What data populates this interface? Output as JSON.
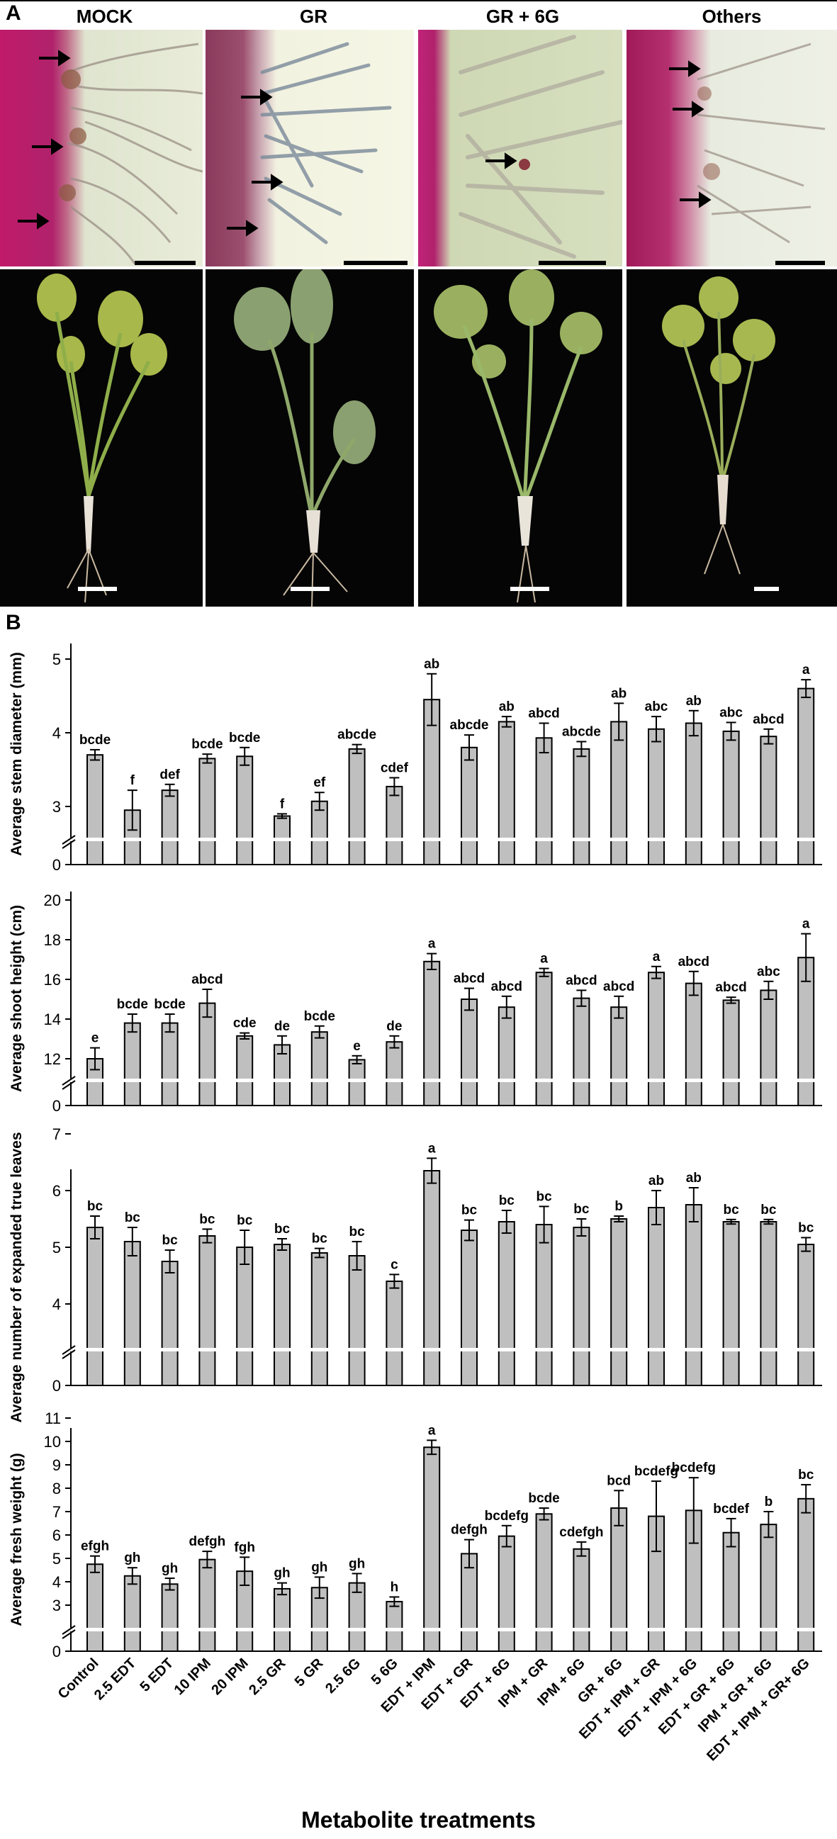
{
  "panel_a": {
    "letter": "A",
    "columns": [
      "MOCK",
      "GR",
      "GR + 6G",
      "Others"
    ]
  },
  "panel_b": {
    "letter": "B",
    "x_axis_title": "Metabolite treatments"
  },
  "colors": {
    "bar_fill": "#bfbfbf",
    "bar_stroke": "#000000",
    "stain_magenta": "#b0226b",
    "plant_green": "#7da040",
    "background_dark": "#050505"
  },
  "chart_data": [
    {
      "type": "bar",
      "ylabel": "Average stem diameter (mm)",
      "ylim": [
        0,
        5.5
      ],
      "axis_break": true,
      "yticks": [
        "0",
        "3",
        "4",
        "5"
      ],
      "categories": [
        "Control",
        "2.5 EDT",
        "5 EDT",
        "10 IPM",
        "20 IPM",
        "2.5 GR",
        "5 GR",
        "2.5 6G",
        "5 6G",
        "EDT + IPM",
        "EDT + GR",
        "EDT + 6G",
        "IPM + GR",
        "IPM + 6G",
        "GR + 6G",
        "EDT + IPM + GR",
        "EDT + IPM + 6G",
        "EDT + GR + 6G",
        "IPM + GR + 6G",
        "EDT + IPM + GR+ 6G"
      ],
      "values": [
        3.7,
        2.95,
        3.22,
        3.65,
        3.68,
        2.87,
        3.07,
        3.78,
        3.27,
        4.45,
        3.8,
        4.15,
        3.93,
        3.78,
        4.15,
        4.05,
        4.13,
        4.02,
        3.95,
        4.6
      ],
      "errors": [
        0.07,
        0.27,
        0.08,
        0.06,
        0.12,
        0.03,
        0.12,
        0.06,
        0.12,
        0.35,
        0.17,
        0.07,
        0.2,
        0.1,
        0.25,
        0.17,
        0.17,
        0.12,
        0.1,
        0.12
      ],
      "letters": [
        "bcde",
        "f",
        "def",
        "bcde",
        "bcde",
        "f",
        "ef",
        "abcde",
        "cdef",
        "ab",
        "abcde",
        "ab",
        "abcd",
        "abcde",
        "ab",
        "abc",
        "ab",
        "abc",
        "abcd",
        "a"
      ]
    },
    {
      "type": "bar",
      "ylabel": "Average shoot height (cm)",
      "ylim": [
        0,
        20
      ],
      "axis_break": true,
      "yticks": [
        "0",
        "12",
        "14",
        "16",
        "18",
        "20"
      ],
      "categories": [
        "Control",
        "2.5 EDT",
        "5 EDT",
        "10 IPM",
        "20 IPM",
        "2.5 GR",
        "5 GR",
        "2.5 6G",
        "5 6G",
        "EDT + IPM",
        "EDT + GR",
        "EDT + 6G",
        "IPM + GR",
        "IPM + 6G",
        "GR + 6G",
        "EDT + IPM + GR",
        "EDT + IPM + 6G",
        "EDT + GR + 6G",
        "IPM + GR + 6G",
        "EDT + IPM + GR+ 6G"
      ],
      "values": [
        12.0,
        13.8,
        13.8,
        14.8,
        13.15,
        12.7,
        13.35,
        11.95,
        12.85,
        16.9,
        15.0,
        14.6,
        16.35,
        15.05,
        14.6,
        16.35,
        15.8,
        14.95,
        15.45,
        17.1
      ],
      "errors": [
        0.55,
        0.45,
        0.45,
        0.7,
        0.15,
        0.45,
        0.3,
        0.2,
        0.3,
        0.4,
        0.55,
        0.55,
        0.2,
        0.4,
        0.55,
        0.3,
        0.6,
        0.15,
        0.45,
        1.2
      ],
      "letters": [
        "e",
        "bcde",
        "bcde",
        "abcd",
        "cde",
        "de",
        "bcde",
        "e",
        "de",
        "a",
        "abcd",
        "abcd",
        "a",
        "abcd",
        "abcd",
        "a",
        "abcd",
        "abcd",
        "abc",
        "a"
      ]
    },
    {
      "type": "bar",
      "ylabel": "Average number of expanded true leaves",
      "ylim": [
        0,
        7.5
      ],
      "axis_break": true,
      "yticks": [
        "0",
        "4",
        "5",
        "6",
        "7"
      ],
      "categories": [
        "Control",
        "2.5 EDT",
        "5 EDT",
        "10 IPM",
        "20 IPM",
        "2.5 GR",
        "5 GR",
        "2.5 6G",
        "5 6G",
        "EDT + IPM",
        "EDT + GR",
        "EDT + 6G",
        "IPM + GR",
        "IPM + 6G",
        "GR + 6G",
        "EDT + IPM + GR",
        "EDT + IPM + 6G",
        "EDT + GR + 6G",
        "IPM + GR + 6G",
        "EDT + IPM + GR+ 6G"
      ],
      "values": [
        5.35,
        5.1,
        4.75,
        5.2,
        5.0,
        5.05,
        4.9,
        4.85,
        4.4,
        6.35,
        5.3,
        5.45,
        5.4,
        5.35,
        5.5,
        5.7,
        5.75,
        5.45,
        5.45,
        5.05
      ],
      "errors": [
        0.2,
        0.25,
        0.2,
        0.12,
        0.3,
        0.1,
        0.08,
        0.25,
        0.12,
        0.22,
        0.18,
        0.2,
        0.32,
        0.15,
        0.05,
        0.3,
        0.3,
        0.04,
        0.04,
        0.12
      ],
      "letters": [
        "bc",
        "bc",
        "bc",
        "bc",
        "bc",
        "bc",
        "bc",
        "bc",
        "c",
        "a",
        "bc",
        "bc",
        "bc",
        "bc",
        "b",
        "ab",
        "ab",
        "bc",
        "bc",
        "bc"
      ]
    },
    {
      "type": "bar",
      "ylabel": "Average fresh weight (g)",
      "ylim": [
        0,
        11
      ],
      "axis_break": true,
      "yticks": [
        "0",
        "3",
        "4",
        "5",
        "6",
        "7",
        "8",
        "9",
        "10",
        "11"
      ],
      "categories": [
        "Control",
        "2.5 EDT",
        "5 EDT",
        "10 IPM",
        "20 IPM",
        "2.5 GR",
        "5 GR",
        "2.5 6G",
        "5 6G",
        "EDT + IPM",
        "EDT + GR",
        "EDT + 6G",
        "IPM + GR",
        "IPM + 6G",
        "GR + 6G",
        "EDT + IPM + GR",
        "EDT + IPM + 6G",
        "EDT + GR + 6G",
        "IPM + GR + 6G",
        "EDT + IPM + GR+ 6G"
      ],
      "values": [
        4.75,
        4.25,
        3.9,
        4.95,
        4.45,
        3.7,
        3.75,
        3.95,
        3.15,
        9.75,
        5.2,
        5.95,
        6.9,
        5.4,
        7.15,
        6.8,
        7.05,
        6.1,
        6.45,
        7.55
      ],
      "errors": [
        0.35,
        0.35,
        0.25,
        0.35,
        0.6,
        0.25,
        0.45,
        0.4,
        0.2,
        0.3,
        0.6,
        0.45,
        0.25,
        0.3,
        0.75,
        1.5,
        1.4,
        0.6,
        0.55,
        0.6
      ],
      "letters": [
        "efgh",
        "gh",
        "gh",
        "defgh",
        "fgh",
        "gh",
        "gh",
        "gh",
        "h",
        "a",
        "defgh",
        "bcdefg",
        "bcde",
        "cdefgh",
        "bcd",
        "bcdefg",
        "bcdefg",
        "bcdef",
        "b",
        "bc"
      ]
    }
  ]
}
